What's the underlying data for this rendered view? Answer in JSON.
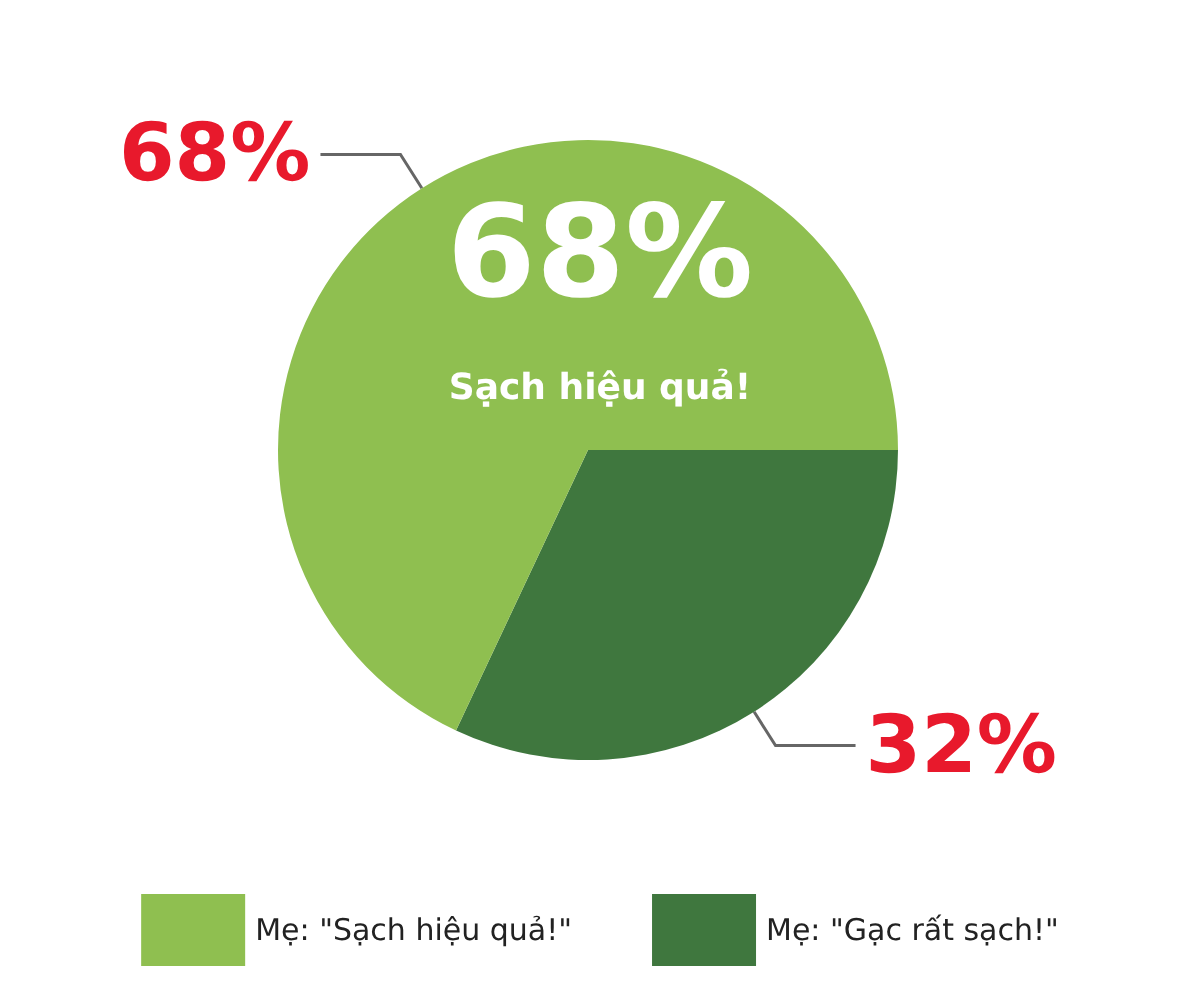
{
  "chart_data": {
    "type": "pie",
    "categories": [
      "Mẹ: \"Gạc rất sạch!\"",
      "Mẹ: \"Sạch hiệu quả!\""
    ],
    "values": [
      32,
      68
    ],
    "colors": [
      "#3f773e",
      "#8fbf50"
    ],
    "value_labels": [
      "32%",
      "68%"
    ],
    "annotations": [
      "68%",
      "Sạch hiệu quả!"
    ],
    "legend": "bottom"
  }
}
